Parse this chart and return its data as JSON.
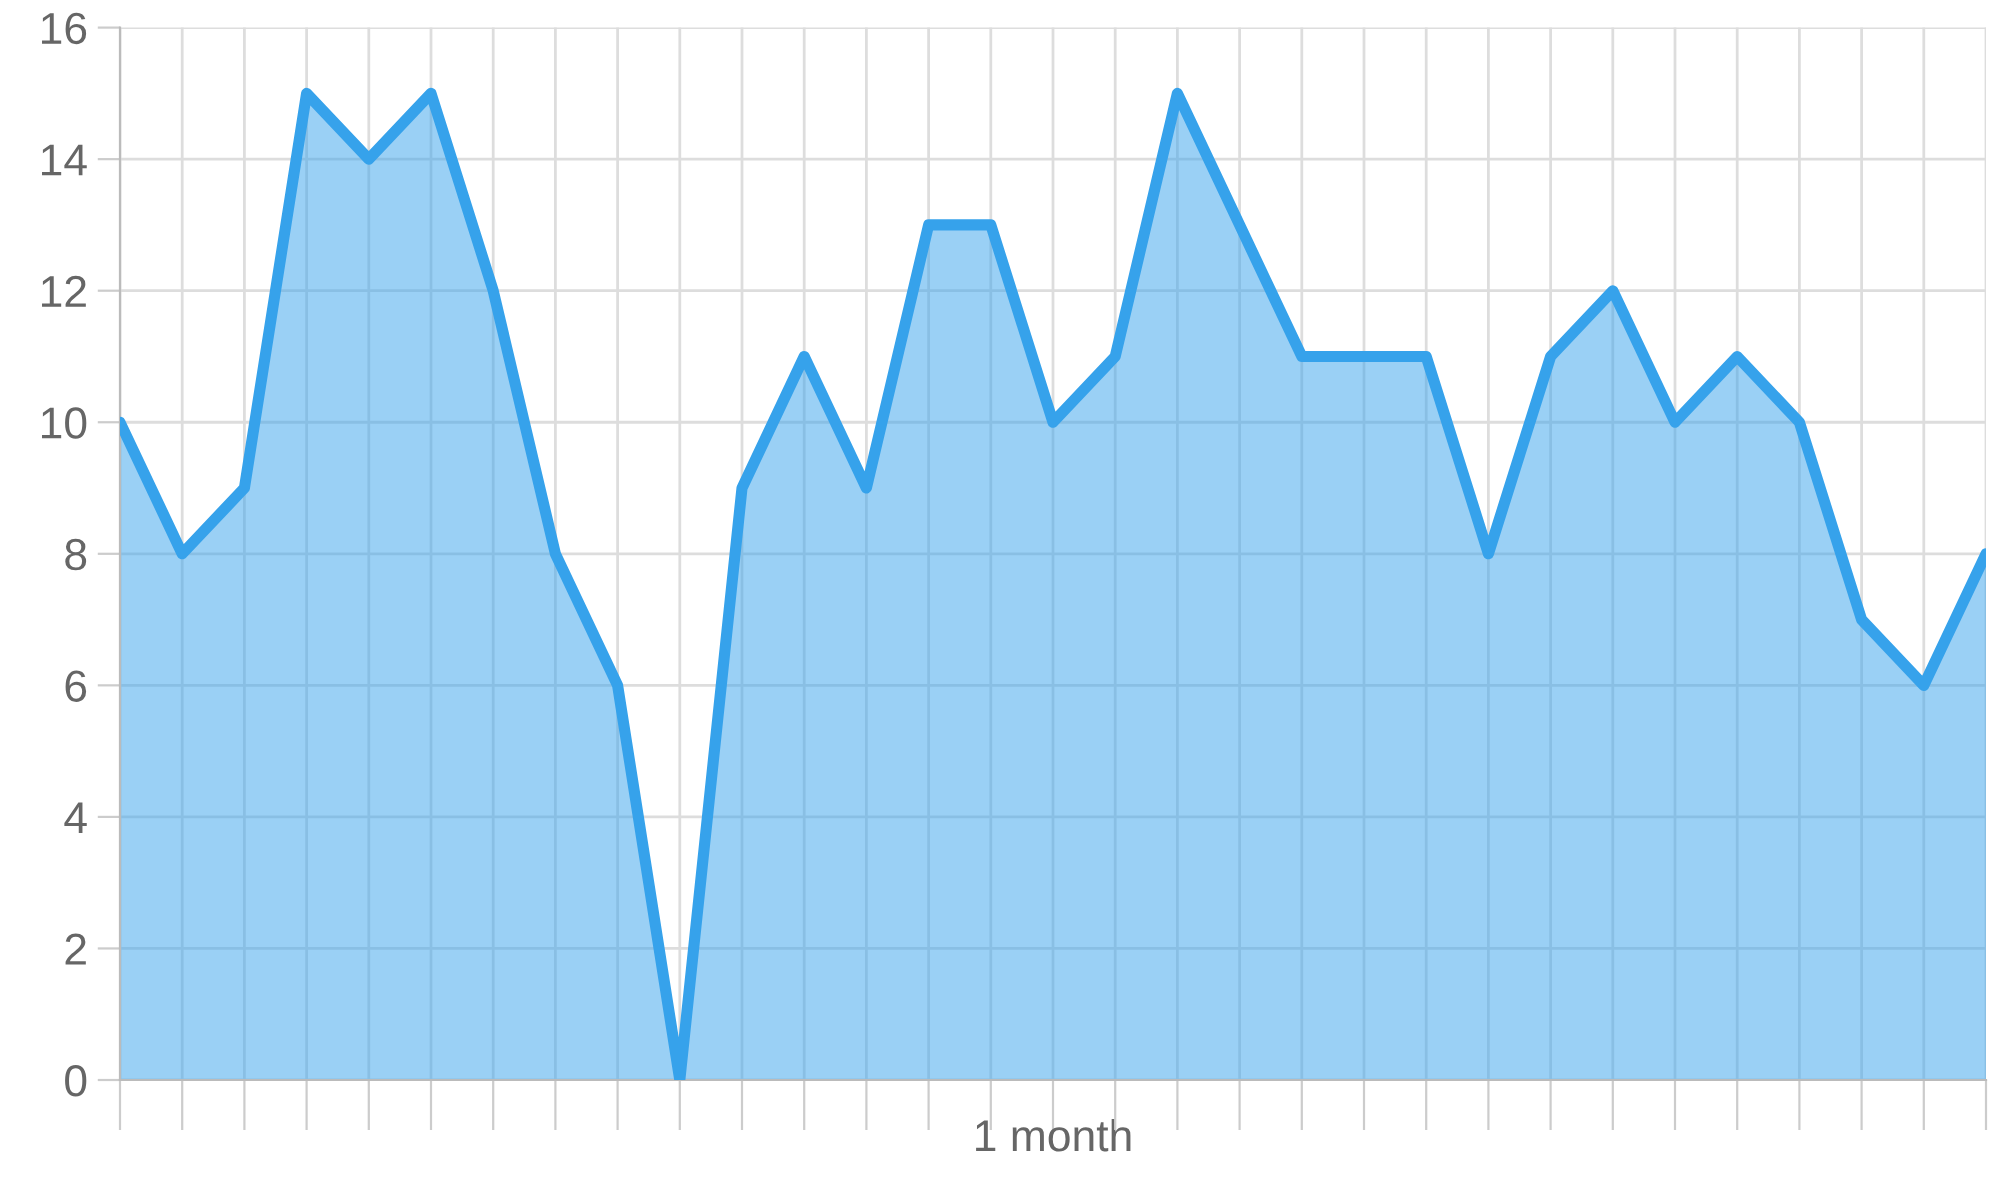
{
  "chart_data": {
    "type": "area",
    "categories": [
      null,
      null,
      null,
      null,
      null,
      null,
      null,
      null,
      null,
      null,
      null,
      null,
      null,
      null,
      null,
      "1 month",
      null,
      null,
      null,
      null,
      null,
      null,
      null,
      null,
      null,
      null,
      null,
      null,
      null,
      null,
      null
    ],
    "series": [
      {
        "color": "#36a2eb",
        "values": [
          10,
          8,
          9,
          15,
          14,
          15,
          12,
          8,
          6,
          0,
          9,
          11,
          9,
          13,
          13,
          10,
          11,
          15,
          13,
          11,
          11,
          11,
          8,
          11,
          12,
          10,
          11,
          10,
          7,
          6,
          8
        ]
      }
    ],
    "ylim": [
      0,
      16
    ],
    "yticks": [
      0,
      2,
      4,
      6,
      8,
      10,
      12,
      14,
      16
    ],
    "grid": true,
    "legend": false
  }
}
